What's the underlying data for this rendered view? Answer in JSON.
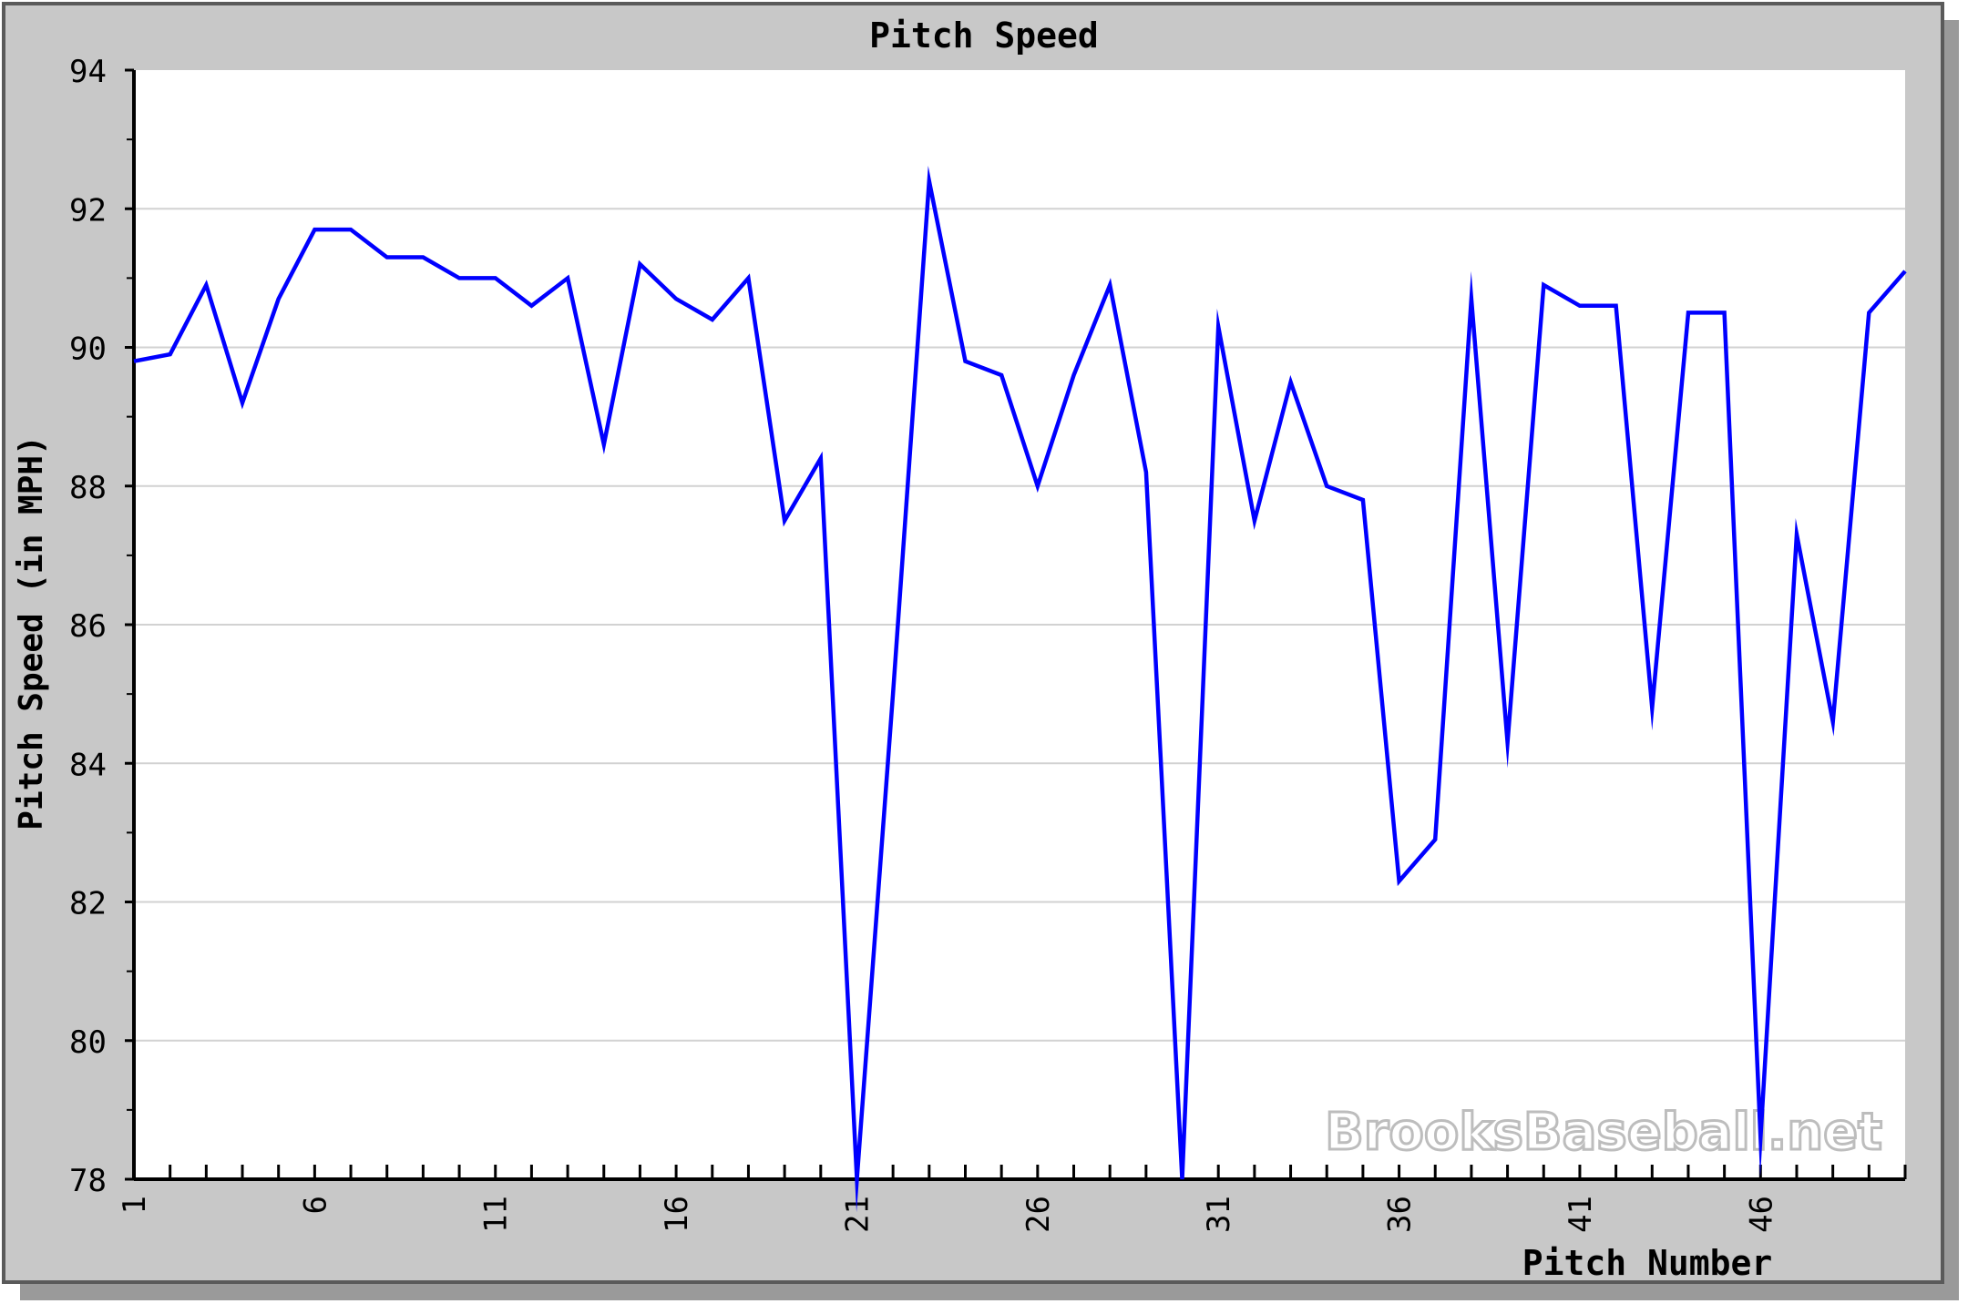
{
  "chart_data": {
    "type": "line",
    "title": "Pitch Speed",
    "xlabel": "Pitch Number",
    "ylabel": "Pitch Speed (in MPH)",
    "xlim": [
      1,
      50
    ],
    "ylim": [
      78,
      94
    ],
    "yticks": [
      78,
      80,
      82,
      84,
      86,
      88,
      90,
      92,
      94
    ],
    "xticks": [
      1,
      6,
      11,
      16,
      21,
      26,
      31,
      36,
      41,
      46
    ],
    "grid": true,
    "watermark": "BrooksBaseball.net",
    "series": [
      {
        "color": "#0000ff",
        "x": [
          1,
          2,
          3,
          4,
          5,
          6,
          7,
          8,
          9,
          10,
          11,
          12,
          13,
          14,
          15,
          16,
          17,
          18,
          19,
          20,
          21,
          22,
          23,
          24,
          25,
          26,
          27,
          28,
          29,
          30,
          31,
          32,
          33,
          34,
          35,
          36,
          37,
          38,
          39,
          40,
          41,
          42,
          43,
          44,
          45,
          46,
          47,
          48,
          49,
          50
        ],
        "values": [
          89.8,
          89.9,
          90.9,
          89.2,
          90.7,
          91.7,
          91.7,
          91.3,
          91.3,
          91.0,
          91.0,
          90.6,
          91.0,
          88.6,
          91.2,
          90.7,
          90.4,
          91.0,
          87.5,
          88.4,
          78.0,
          85.0,
          92.4,
          89.8,
          89.6,
          88.0,
          89.6,
          90.9,
          88.2,
          78.0,
          90.3,
          87.5,
          89.5,
          88.0,
          87.8,
          82.3,
          82.9,
          90.7,
          84.3,
          90.9,
          90.6,
          90.6,
          84.8,
          90.5,
          90.5,
          78.6,
          87.3,
          84.6,
          90.5,
          91.1
        ]
      }
    ]
  }
}
